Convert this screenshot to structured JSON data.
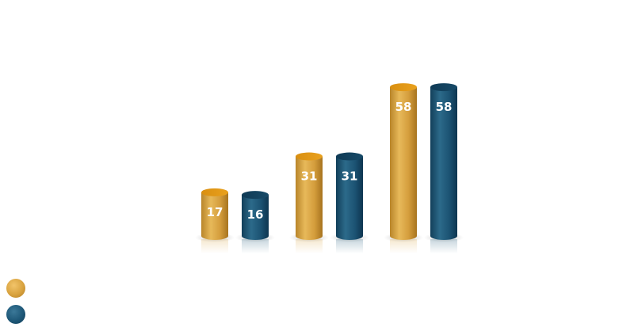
{
  "chart_data": {
    "type": "bar",
    "categories": [
      "",
      "",
      ""
    ],
    "series": [
      {
        "values": [
          17,
          31,
          58
        ],
        "color": "#d9a33f"
      },
      {
        "values": [
          16,
          31,
          58
        ],
        "color": "#1e5878"
      }
    ],
    "title": "",
    "xlabel": "",
    "ylabel": "",
    "ylim": [
      0,
      60
    ],
    "grid": false,
    "legend": "bottom-left"
  }
}
